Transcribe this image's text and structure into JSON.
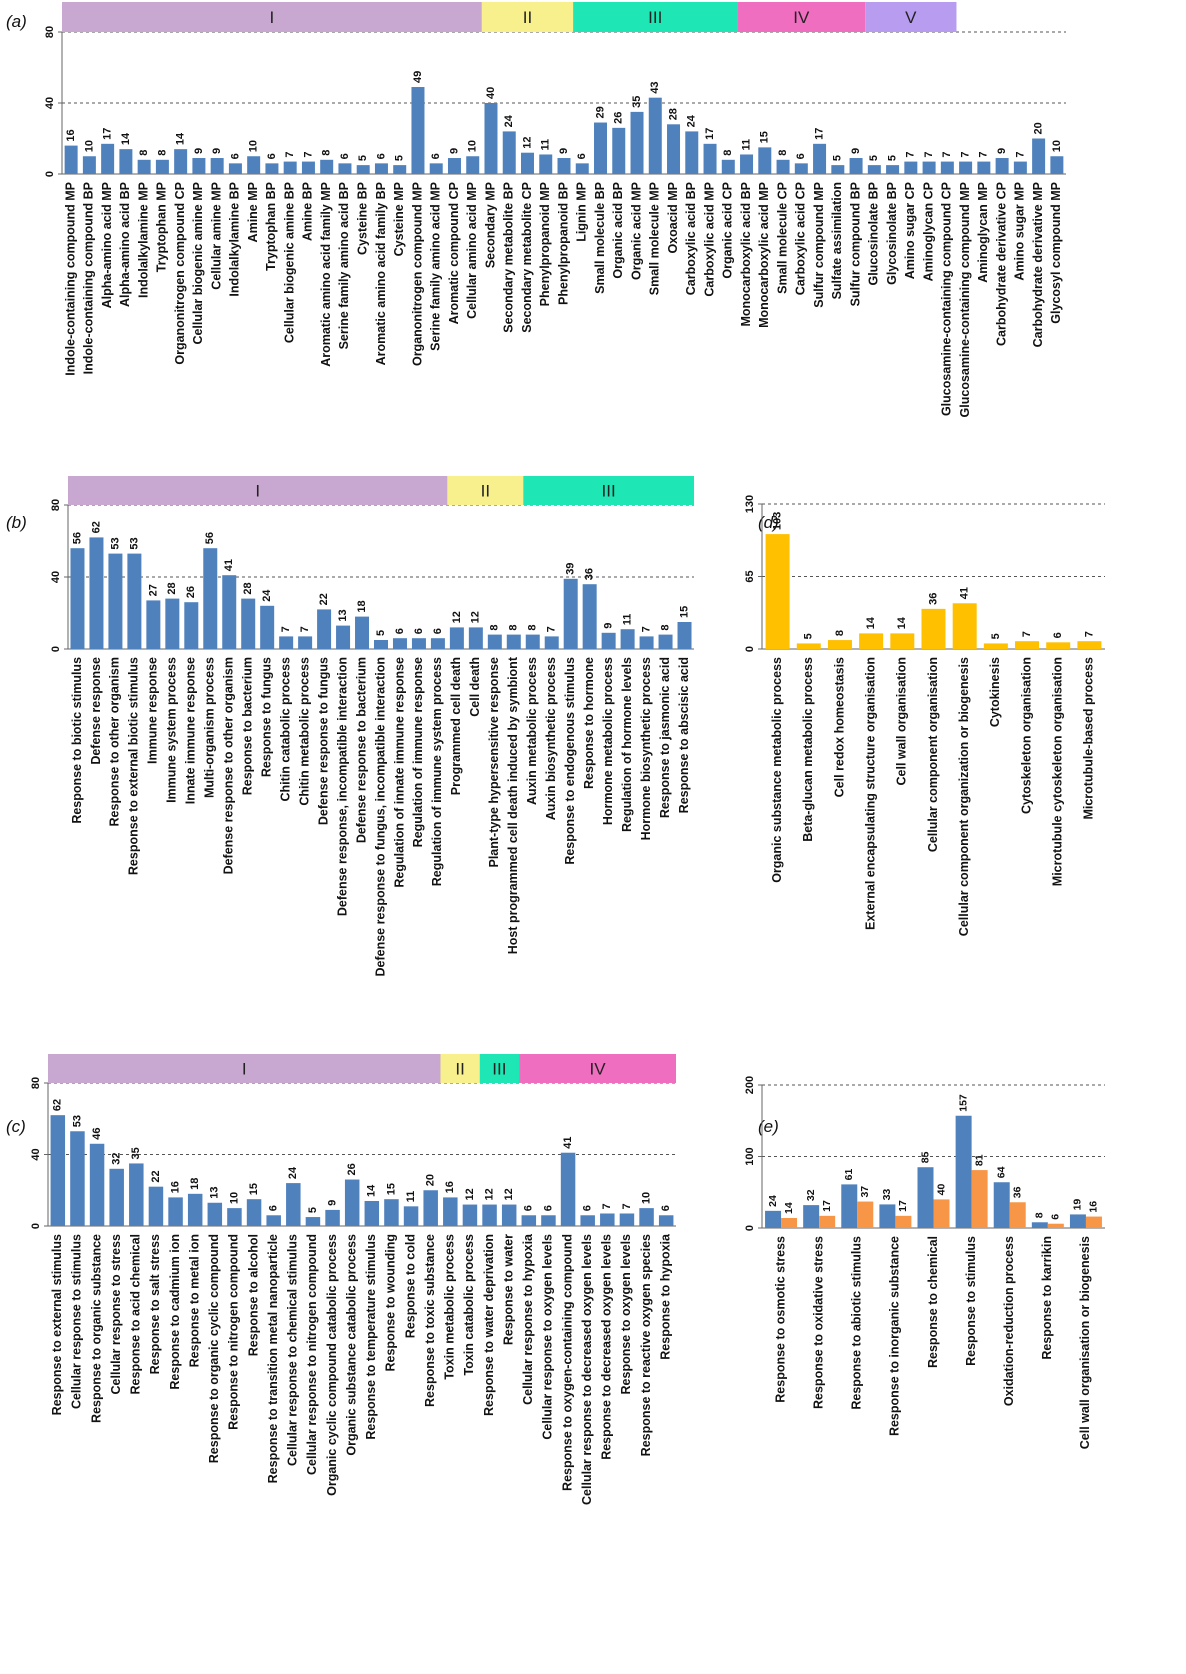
{
  "colors": {
    "blue": "#4F81BD",
    "orange": "#F79646",
    "yellow": "#FFC000"
  },
  "chart_data": [
    {
      "panel": "(a)",
      "type": "bar",
      "ylim": [
        0,
        80
      ],
      "yticks": [
        0,
        40,
        80
      ],
      "grid": "dashed at 40 and 80",
      "groups": [
        {
          "label": "I",
          "start": 0,
          "end": 22,
          "color": "#C8A8D0"
        },
        {
          "label": "II",
          "start": 23,
          "end": 27,
          "color": "#F7F08C"
        },
        {
          "label": "III",
          "start": 28,
          "end": 36,
          "color": "#1EE6B4"
        },
        {
          "label": "IV",
          "start": 37,
          "end": 43,
          "color": "#F06EC0"
        },
        {
          "label": "V",
          "start": 44,
          "end": 48,
          "color": "#B89CF0"
        }
      ],
      "categories": [
        "Indole-containing compound MP",
        "Indole-containing compound BP",
        "Alpha-amino acid MP",
        "Alpha-amino acid BP",
        "Indolalkylamine MP",
        "Tryptophan MP",
        "Organonitrogen compound CP",
        "Cellular biogenic amine MP",
        "Cellular amine MP",
        "Indolalkylamine BP",
        "Amine MP",
        "Tryptophan BP",
        "Cellular biogenic amine BP",
        "Amine BP",
        "Aromatic amino acid family MP",
        "Serine family amino acid BP",
        "Cysteine BP",
        "Aromatic amino acid family BP",
        "Cysteine MP",
        "Organonitrogen compound MP",
        "Serine family amino acid MP",
        "Aromatic compound CP",
        "Cellular amino acid MP",
        "Secondary MP",
        "Secondary metabolite BP",
        "Secondary metabolite CP",
        "Phenylpropanoid MP",
        "Phenylpropanoid BP",
        "Lignin MP",
        "Small molecule BP",
        "Organic acid BP",
        "Organic acid MP",
        "Small molecule MP",
        "Oxoacid MP",
        "Carboxylic acid BP",
        "Carboxylic acid MP",
        "Organic acid CP",
        "Monocarboxylic acid BP",
        "Monocarboxylic acid MP",
        "Small molecule CP",
        "Carboxylic acid CP",
        "Sulfur compound MP",
        "Sulfate assimilation",
        "Sulfur compound BP",
        "Glucosinolate BP",
        "Glycosinolate BP",
        "Amino sugar CP",
        "Aminoglycan CP",
        "Glucosamine-containing compound CP",
        "Glucosamine-containing compound MP",
        "Aminoglycan MP",
        "Carbohydrate derivative CP",
        "Amino sugar MP",
        "Carbohydrate derivative MP",
        "Glycosyl compound MP"
      ],
      "values": [
        16,
        10,
        17,
        14,
        8,
        8,
        14,
        9,
        9,
        6,
        10,
        6,
        7,
        7,
        8,
        6,
        5,
        6,
        5,
        49,
        6,
        9,
        10,
        40,
        24,
        12,
        11,
        9,
        6,
        29,
        26,
        35,
        43,
        28,
        24,
        17,
        8,
        11,
        15,
        8,
        6,
        17,
        5,
        9,
        5,
        5,
        7,
        7,
        7,
        7,
        7,
        9,
        7,
        20,
        10
      ]
    },
    {
      "panel": "(b)",
      "type": "bar",
      "ylim": [
        0,
        80
      ],
      "yticks": [
        0,
        40,
        80
      ],
      "grid": "dashed at 40 and 80",
      "groups": [
        {
          "label": "I",
          "start": 0,
          "end": 19,
          "color": "#C8A8D0"
        },
        {
          "label": "II",
          "start": 20,
          "end": 23,
          "color": "#F7F08C"
        },
        {
          "label": "III",
          "start": 24,
          "end": 32,
          "color": "#1EE6B4"
        }
      ],
      "categories": [
        "Response to biotic stimulus",
        "Defense response",
        "Response to other organism",
        "Response to external biotic stimulus",
        "Immune response",
        "Immune system process",
        "Innate immune response",
        "Multi-organism process",
        "Defense response to other organism",
        "Response to bacterium",
        "Response to fungus",
        "Chitin catabolic process",
        "Chitin metabolic process",
        "Defense response to fungus",
        "Defense response, incompatible interaction",
        "Defense response to bacterium",
        "Defense response to fungus, incompatible interaction",
        "Regulation of innate immune response",
        "Regulation of immune response",
        "Regulation of immune system process",
        "Programmed cell death",
        "Cell death",
        "Plant-type hypersensitive response",
        "Host programmed cell death induced by symbiont",
        "Auxin metabolic process",
        "Auxin biosynthetic process",
        "Response to endogenous stimulus",
        "Response to hormone",
        "Hormone metabolic process",
        "Regulation of hormone levels",
        "Hormone biosynthetic process",
        "Response to jasmonic acid",
        "Response to abscisic acid"
      ],
      "values": [
        56,
        62,
        53,
        53,
        27,
        28,
        26,
        56,
        41,
        28,
        24,
        7,
        7,
        22,
        13,
        18,
        5,
        6,
        6,
        6,
        12,
        12,
        8,
        8,
        8,
        7,
        39,
        36,
        9,
        11,
        7,
        8,
        15
      ]
    },
    {
      "panel": "(c)",
      "type": "bar",
      "ylim": [
        0,
        80
      ],
      "yticks": [
        0,
        40,
        80
      ],
      "grid": "dashed at 40 and 80",
      "groups": [
        {
          "label": "I",
          "start": 0,
          "end": 19,
          "color": "#C8A8D0"
        },
        {
          "label": "II",
          "start": 20,
          "end": 21,
          "color": "#F7F08C"
        },
        {
          "label": "III",
          "start": 22,
          "end": 23,
          "color": "#1EE6B4"
        },
        {
          "label": "IV",
          "start": 24,
          "end": 31,
          "color": "#F06EC0"
        }
      ],
      "categories": [
        "Response to external stimulus",
        "Cellular response to stimulus",
        "Response to organic substance",
        "Cellular response to stress",
        "Response to acid chemical",
        "Response to salt stress",
        "Response to cadmium ion",
        "Response to metal ion",
        "Response to organic cyclic compound",
        "Response to nitrogen compound",
        "Response to alcohol",
        "Response to transition metal nanoparticle",
        "Cellular response to chemical stimulus",
        "Cellular response to nitrogen compound",
        "Organic cyclic compound catabolic process",
        "Organic substance catabolic process",
        "Response to temperature stimulus",
        "Response to wounding",
        "Response to cold",
        "Response to toxic substance",
        "Toxin metabolic process",
        "Toxin catabolic process",
        "Response to water deprivation",
        "Response to water",
        "Cellular response to hypoxia",
        "Cellular response to oxygen levels",
        "Response to oxygen-containing compound",
        "Cellular response to decreased oxygen levels",
        "Response to decreased oxygen levels",
        "Response to oxygen levels",
        "Response to reactive oxygen species",
        "Response to hypoxia"
      ],
      "values": [
        62,
        53,
        46,
        32,
        35,
        22,
        16,
        18,
        13,
        10,
        15,
        6,
        24,
        5,
        9,
        26,
        14,
        15,
        11,
        20,
        16,
        12,
        12,
        12,
        6,
        6,
        41,
        6,
        7,
        7,
        10,
        6
      ]
    },
    {
      "panel": "(d)",
      "type": "bar",
      "ylim": [
        0,
        130
      ],
      "yticks": [
        0,
        65,
        130
      ],
      "grid": "dashed at 65 and 130",
      "categories": [
        "Organic substance metabolic process",
        "Beta-glucan metabolic process",
        "Cell redox homeostasis",
        "External encapsulating structure organisation",
        "Cell wall organisation",
        "Cellular component organisation",
        "Cellular component organization or biogenesis",
        "Cytokinesis",
        "Cytoskeleton organisation",
        "Microtubule cytoskeleton organisation",
        "Microtubule-based process"
      ],
      "values": [
        103,
        5,
        8,
        14,
        14,
        36,
        41,
        5,
        7,
        6,
        7
      ]
    },
    {
      "panel": "(e)",
      "type": "bar",
      "ylim": [
        0,
        200
      ],
      "yticks": [
        0,
        100,
        200
      ],
      "grid": "dashed at 100 and 200",
      "categories": [
        "Response to osmotic stress",
        "Response to oxidative stress",
        "Response to abiotic stimulus",
        "Response to inorganic substance",
        "Response to chemical",
        "Response to stimulus",
        "Oxidation-reduction process",
        "Response to karrikin",
        "Cell wall organisation or biogenesis"
      ],
      "series": [
        {
          "values": [
            24,
            32,
            61,
            33,
            85,
            157,
            64,
            8,
            19
          ]
        },
        {
          "values": [
            14,
            17,
            37,
            17,
            40,
            81,
            36,
            6,
            16
          ]
        }
      ]
    }
  ]
}
